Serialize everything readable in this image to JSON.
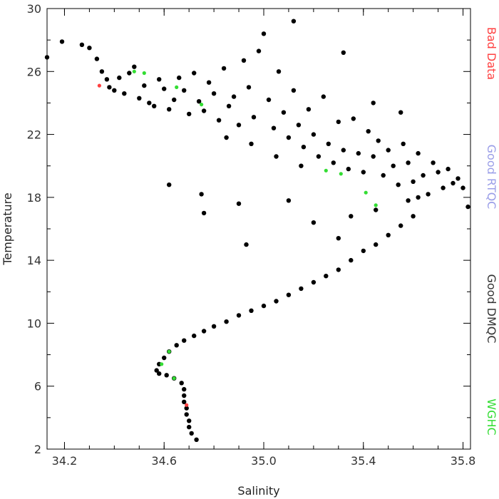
{
  "chart_data": {
    "type": "scatter",
    "title": "",
    "xlabel": "Salinity",
    "ylabel": "Temperature",
    "xlim": [
      34.13,
      35.83
    ],
    "ylim": [
      2,
      30
    ],
    "xticks": [
      34.2,
      34.6,
      35.0,
      35.4,
      35.8
    ],
    "xtick_labels": [
      "34.2",
      "34.6",
      "35.0",
      "35.4",
      "35.8"
    ],
    "yticks": [
      2,
      6,
      10,
      14,
      18,
      22,
      26,
      30
    ],
    "ytick_labels": [
      "2",
      "6",
      "10",
      "14",
      "18",
      "22",
      "26",
      "30"
    ],
    "grid": false,
    "legend_position": "right-vertical",
    "series": [
      {
        "name": "Good DMQC",
        "color": "#000000",
        "points": [
          [
            34.13,
            26.9
          ],
          [
            34.19,
            27.9
          ],
          [
            34.27,
            27.7
          ],
          [
            34.3,
            27.5
          ],
          [
            34.33,
            26.8
          ],
          [
            34.35,
            26.0
          ],
          [
            34.37,
            25.5
          ],
          [
            34.38,
            25.0
          ],
          [
            34.4,
            24.8
          ],
          [
            34.42,
            25.6
          ],
          [
            34.44,
            24.6
          ],
          [
            34.46,
            25.9
          ],
          [
            34.48,
            26.3
          ],
          [
            34.5,
            24.3
          ],
          [
            34.52,
            25.1
          ],
          [
            34.54,
            24.0
          ],
          [
            34.56,
            23.8
          ],
          [
            34.58,
            25.5
          ],
          [
            34.6,
            24.9
          ],
          [
            34.62,
            23.6
          ],
          [
            34.64,
            24.2
          ],
          [
            34.66,
            25.6
          ],
          [
            34.68,
            24.8
          ],
          [
            34.7,
            23.3
          ],
          [
            34.72,
            25.9
          ],
          [
            34.74,
            24.1
          ],
          [
            34.76,
            23.5
          ],
          [
            34.78,
            25.3
          ],
          [
            34.8,
            24.6
          ],
          [
            34.82,
            22.9
          ],
          [
            34.84,
            26.2
          ],
          [
            34.86,
            23.8
          ],
          [
            34.88,
            24.4
          ],
          [
            34.9,
            22.6
          ],
          [
            34.92,
            26.7
          ],
          [
            34.94,
            25.0
          ],
          [
            34.96,
            23.1
          ],
          [
            34.98,
            27.3
          ],
          [
            35.0,
            28.4
          ],
          [
            35.02,
            24.2
          ],
          [
            35.04,
            22.4
          ],
          [
            35.06,
            26.0
          ],
          [
            35.08,
            23.4
          ],
          [
            35.1,
            21.8
          ],
          [
            35.12,
            24.8
          ],
          [
            35.14,
            22.6
          ],
          [
            35.16,
            21.2
          ],
          [
            35.18,
            23.6
          ],
          [
            35.2,
            22.0
          ],
          [
            35.22,
            20.6
          ],
          [
            35.24,
            24.4
          ],
          [
            35.26,
            21.4
          ],
          [
            35.28,
            20.2
          ],
          [
            35.3,
            22.8
          ],
          [
            35.32,
            21.0
          ],
          [
            35.34,
            19.8
          ],
          [
            35.36,
            23.0
          ],
          [
            35.38,
            20.8
          ],
          [
            35.4,
            19.6
          ],
          [
            35.42,
            22.2
          ],
          [
            35.44,
            20.6
          ],
          [
            35.46,
            21.6
          ],
          [
            35.48,
            19.4
          ],
          [
            35.5,
            21.0
          ],
          [
            35.52,
            20.0
          ],
          [
            35.54,
            18.8
          ],
          [
            35.56,
            21.4
          ],
          [
            35.58,
            20.2
          ],
          [
            35.6,
            19.0
          ],
          [
            35.62,
            20.8
          ],
          [
            35.64,
            19.4
          ],
          [
            35.66,
            18.2
          ],
          [
            35.68,
            20.2
          ],
          [
            35.7,
            19.6
          ],
          [
            35.72,
            18.6
          ],
          [
            35.74,
            19.8
          ],
          [
            35.76,
            18.9
          ],
          [
            35.78,
            19.2
          ],
          [
            35.8,
            18.6
          ],
          [
            35.82,
            17.4
          ],
          [
            35.6,
            16.8
          ],
          [
            35.55,
            16.2
          ],
          [
            35.5,
            15.6
          ],
          [
            35.45,
            15.0
          ],
          [
            35.4,
            14.6
          ],
          [
            35.35,
            14.0
          ],
          [
            35.3,
            13.4
          ],
          [
            35.25,
            13.0
          ],
          [
            35.2,
            12.6
          ],
          [
            35.15,
            12.2
          ],
          [
            35.1,
            11.8
          ],
          [
            35.05,
            11.4
          ],
          [
            35.0,
            11.1
          ],
          [
            34.95,
            10.8
          ],
          [
            34.9,
            10.5
          ],
          [
            34.85,
            10.1
          ],
          [
            34.8,
            9.8
          ],
          [
            34.76,
            9.5
          ],
          [
            34.72,
            9.2
          ],
          [
            34.68,
            8.9
          ],
          [
            34.65,
            8.6
          ],
          [
            34.62,
            8.2
          ],
          [
            34.6,
            7.8
          ],
          [
            34.58,
            7.4
          ],
          [
            34.57,
            7.0
          ],
          [
            34.58,
            6.8
          ],
          [
            34.61,
            6.7
          ],
          [
            34.64,
            6.5
          ],
          [
            34.67,
            6.2
          ],
          [
            34.68,
            5.8
          ],
          [
            34.68,
            5.4
          ],
          [
            34.68,
            5.0
          ],
          [
            34.69,
            4.6
          ],
          [
            34.69,
            4.2
          ],
          [
            34.7,
            3.8
          ],
          [
            34.7,
            3.4
          ],
          [
            34.71,
            3.0
          ],
          [
            34.73,
            2.6
          ],
          [
            34.75,
            18.2
          ],
          [
            34.76,
            17.0
          ],
          [
            34.9,
            17.6
          ],
          [
            34.93,
            15.0
          ],
          [
            34.62,
            18.8
          ],
          [
            35.1,
            17.8
          ],
          [
            35.2,
            16.4
          ],
          [
            35.3,
            15.4
          ],
          [
            35.35,
            16.8
          ],
          [
            35.45,
            17.2
          ],
          [
            35.58,
            17.8
          ],
          [
            35.62,
            18.0
          ],
          [
            35.15,
            20.0
          ],
          [
            35.05,
            20.6
          ],
          [
            34.95,
            21.4
          ],
          [
            34.85,
            21.8
          ],
          [
            35.12,
            29.2
          ],
          [
            35.32,
            27.2
          ],
          [
            35.44,
            24.0
          ],
          [
            35.55,
            23.4
          ]
        ]
      },
      {
        "name": "Good RTQC",
        "color": "#9a9ee8",
        "points": []
      },
      {
        "name": "Bad Data",
        "color": "#ff4040",
        "points": [
          [
            34.34,
            25.1
          ],
          [
            34.69,
            4.8
          ]
        ]
      },
      {
        "name": "WGHC",
        "color": "#33dd33",
        "points": [
          [
            34.48,
            26.0
          ],
          [
            34.52,
            25.9
          ],
          [
            34.65,
            25.0
          ],
          [
            34.75,
            23.9
          ],
          [
            35.25,
            19.7
          ],
          [
            35.31,
            19.5
          ],
          [
            35.41,
            18.3
          ],
          [
            35.45,
            17.5
          ],
          [
            34.59,
            7.4
          ],
          [
            34.64,
            6.5
          ],
          [
            34.62,
            8.2
          ]
        ]
      }
    ],
    "legend": [
      {
        "label": "Bad Data",
        "color": "#ff4040"
      },
      {
        "label": "Good RTQC",
        "color": "#9a9ee8"
      },
      {
        "label": "Good DMQC",
        "color": "#333333"
      },
      {
        "label": "WGHC",
        "color": "#33dd33"
      }
    ]
  }
}
